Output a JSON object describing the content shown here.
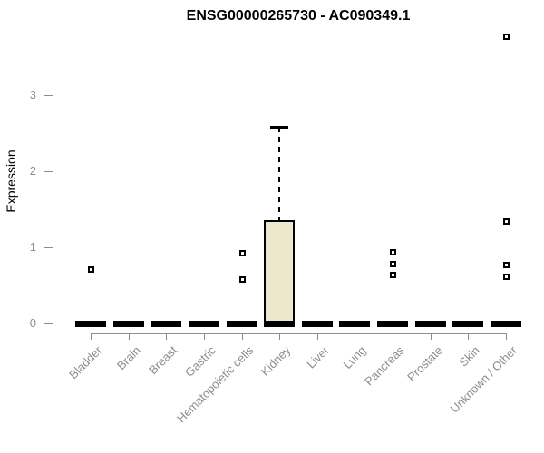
{
  "chart_data": {
    "type": "boxplot",
    "title": "ENSG00000265730 - AC090349.1",
    "ylabel": "Expression",
    "xlabel": "",
    "ylim": [
      0,
      3
    ],
    "yticks": [
      0,
      1,
      2,
      3
    ],
    "grid": false,
    "legend": false,
    "categories": [
      "Bladder",
      "Brain",
      "Breast",
      "Gastric",
      "Hematopoietic cells",
      "Kidney",
      "Liver",
      "Lung",
      "Pancreas",
      "Prostate",
      "Skin",
      "Unknown / Other"
    ],
    "boxes": [
      {
        "category": "Bladder",
        "whisker_low": 0,
        "q1": 0,
        "median": 0,
        "q3": 0,
        "whisker_high": 0,
        "outliers": [
          0.72
        ]
      },
      {
        "category": "Brain",
        "whisker_low": 0,
        "q1": 0,
        "median": 0,
        "q3": 0,
        "whisker_high": 0,
        "outliers": []
      },
      {
        "category": "Breast",
        "whisker_low": 0,
        "q1": 0,
        "median": 0,
        "q3": 0,
        "whisker_high": 0,
        "outliers": []
      },
      {
        "category": "Gastric",
        "whisker_low": 0,
        "q1": 0,
        "median": 0,
        "q3": 0,
        "whisker_high": 0,
        "outliers": []
      },
      {
        "category": "Hematopoietic cells",
        "whisker_low": 0,
        "q1": 0,
        "median": 0,
        "q3": 0,
        "whisker_high": 0,
        "outliers": [
          0.93,
          0.58
        ]
      },
      {
        "category": "Kidney",
        "whisker_low": 0,
        "q1": 0,
        "median": 0,
        "q3": 1.36,
        "whisker_high": 2.58,
        "outliers": []
      },
      {
        "category": "Liver",
        "whisker_low": 0,
        "q1": 0,
        "median": 0,
        "q3": 0,
        "whisker_high": 0,
        "outliers": []
      },
      {
        "category": "Lung",
        "whisker_low": 0,
        "q1": 0,
        "median": 0,
        "q3": 0,
        "whisker_high": 0,
        "outliers": []
      },
      {
        "category": "Pancreas",
        "whisker_low": 0,
        "q1": 0,
        "median": 0,
        "q3": 0,
        "whisker_high": 0,
        "outliers": [
          0.94,
          0.79,
          0.64
        ]
      },
      {
        "category": "Prostate",
        "whisker_low": 0,
        "q1": 0,
        "median": 0,
        "q3": 0,
        "whisker_high": 0,
        "outliers": []
      },
      {
        "category": "Skin",
        "whisker_low": 0,
        "q1": 0,
        "median": 0,
        "q3": 0,
        "whisker_high": 0,
        "outliers": []
      },
      {
        "category": "Unknown / Other",
        "whisker_low": 0,
        "q1": 0,
        "median": 0,
        "q3": 0,
        "whisker_high": 0,
        "outliers": [
          3.77,
          1.35,
          0.77,
          0.62
        ]
      }
    ],
    "colors": {
      "background": "#ffffff",
      "title_text": "#000000",
      "axis_line": "#8c8c8c",
      "tick_label": "#8c8c8c",
      "box_fill": "#ece7cd",
      "box_border": "#000000",
      "median": "#000000",
      "outlier": "#000000"
    }
  }
}
